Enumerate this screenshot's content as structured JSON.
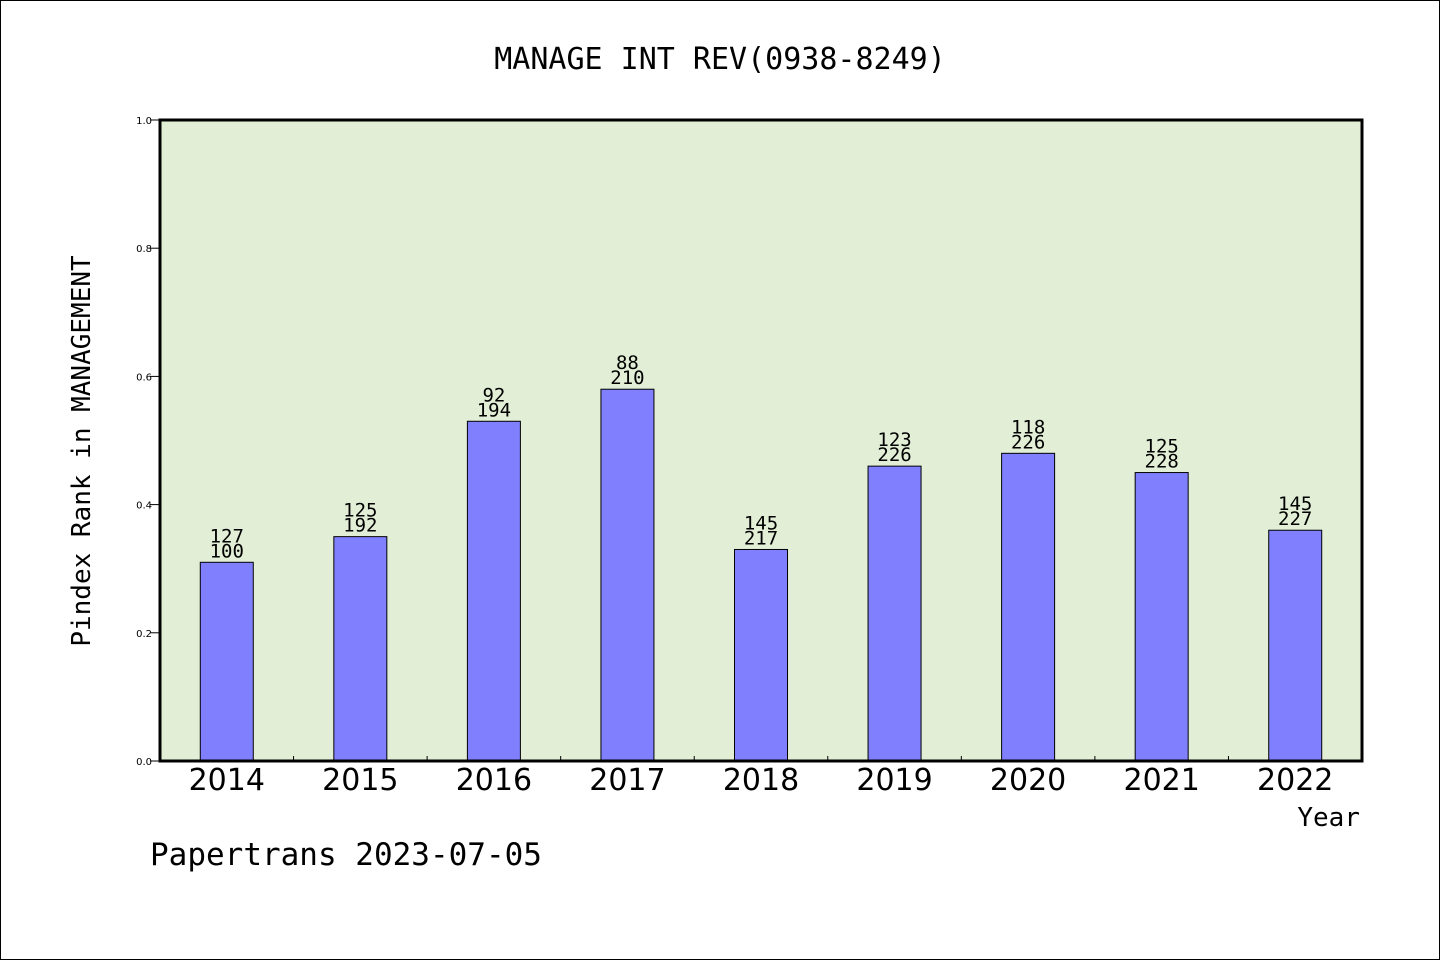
{
  "chart_data": {
    "type": "bar",
    "title": "MANAGE INT REV(0938-8249)",
    "xlabel": "Year",
    "ylabel": "Pindex Rank in MANAGEMENT",
    "categories": [
      "2014",
      "2015",
      "2016",
      "2017",
      "2018",
      "2019",
      "2020",
      "2021",
      "2022"
    ],
    "values": [
      0.31,
      0.35,
      0.53,
      0.58,
      0.33,
      0.46,
      0.48,
      0.45,
      0.36
    ],
    "label_top": [
      "127",
      "125",
      "92",
      "88",
      "145",
      "123",
      "118",
      "125",
      "145"
    ],
    "label_bottom": [
      "100",
      "192",
      "194",
      "210",
      "217",
      "226",
      "226",
      "228",
      "227"
    ],
    "ylim": [
      0,
      1.0
    ],
    "yticks": [
      "0.0",
      "0.2",
      "0.4",
      "0.6",
      "0.8",
      "1.0"
    ],
    "grid": false,
    "colors": {
      "bar": "#8080ff",
      "plot_bg": "#e2efd6"
    }
  },
  "footer": "Papertrans 2023-07-05"
}
